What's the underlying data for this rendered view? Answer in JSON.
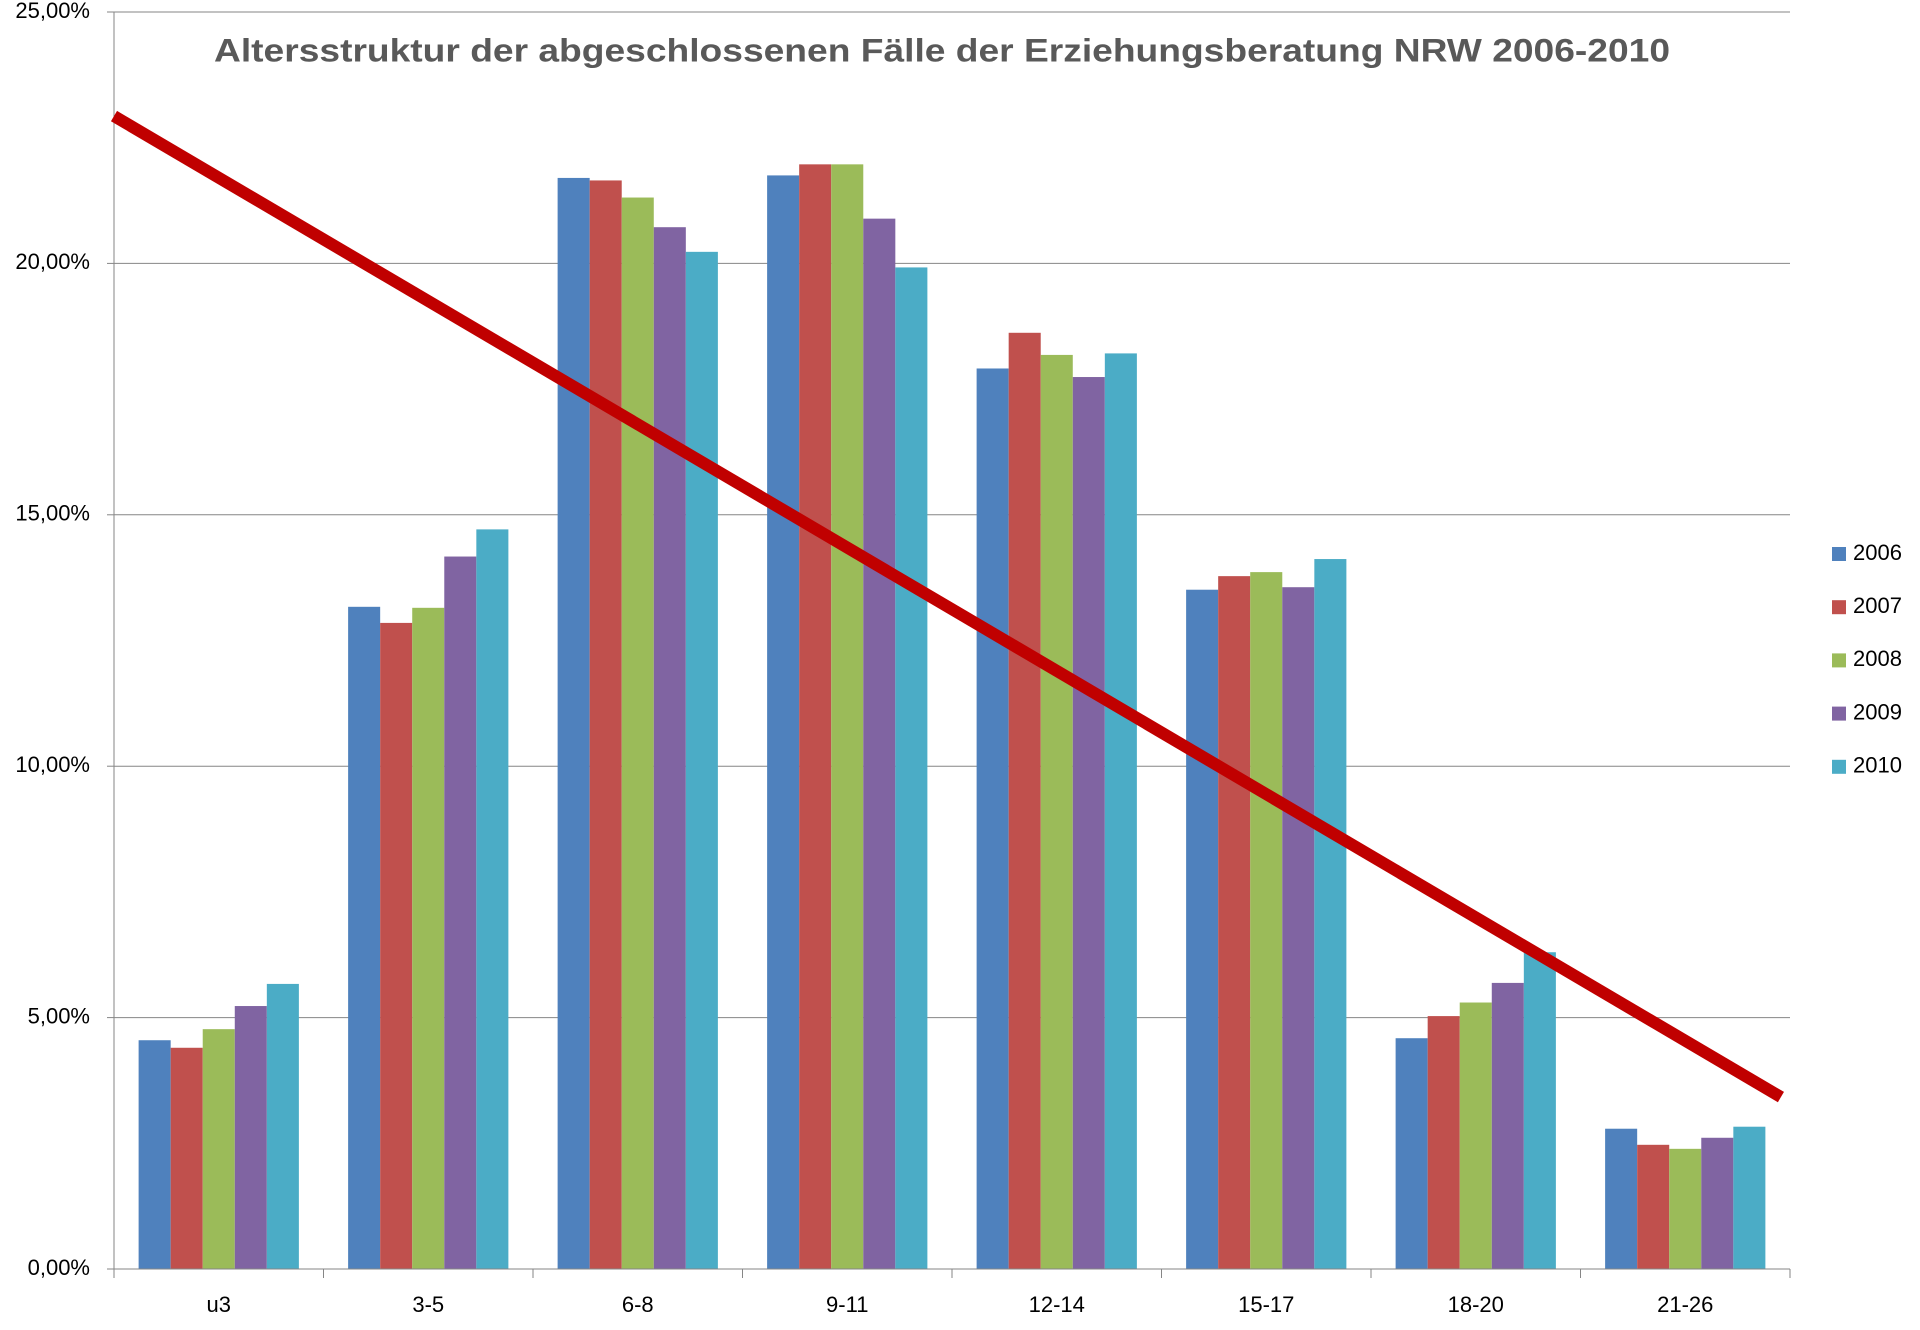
{
  "chart_data": {
    "type": "bar",
    "title": "Altersstruktur der abgeschlossenen Fälle der Erziehungsberatung NRW  2006-2010",
    "categories": [
      "u3",
      "3-5",
      "6-8",
      "9-11",
      "12-14",
      "15-17",
      "18-20",
      "21-26"
    ],
    "series": [
      {
        "name": "2006",
        "color": "#4f81bd",
        "values": [
          4.55,
          13.17,
          21.7,
          21.75,
          17.91,
          13.51,
          4.59,
          2.79
        ]
      },
      {
        "name": "2007",
        "color": "#c0504d",
        "values": [
          4.4,
          12.85,
          21.65,
          21.97,
          18.62,
          13.78,
          5.03,
          2.47
        ]
      },
      {
        "name": "2008",
        "color": "#9bbb59",
        "values": [
          4.77,
          13.15,
          21.31,
          21.97,
          18.18,
          13.86,
          5.3,
          2.39
        ]
      },
      {
        "name": "2009",
        "color": "#8064a2",
        "values": [
          5.23,
          14.17,
          20.72,
          20.89,
          17.74,
          13.56,
          5.69,
          2.61
        ]
      },
      {
        "name": "2010",
        "color": "#4bacc6",
        "values": [
          5.67,
          14.71,
          20.23,
          19.92,
          18.21,
          14.12,
          6.3,
          2.83
        ]
      }
    ],
    "trend_line": {
      "color": "#c00000",
      "values": [
        22.93,
        3.42
      ]
    },
    "ylim": [
      0,
      25
    ],
    "yticks": [
      {
        "value": 0,
        "label": "0,00%"
      },
      {
        "value": 5,
        "label": "5,00%"
      },
      {
        "value": 10,
        "label": "10,00%"
      },
      {
        "value": 15,
        "label": "15,00%"
      },
      {
        "value": 20,
        "label": "20,00%"
      },
      {
        "value": 25,
        "label": "25,00%"
      }
    ],
    "grid": true,
    "legend": "right"
  }
}
